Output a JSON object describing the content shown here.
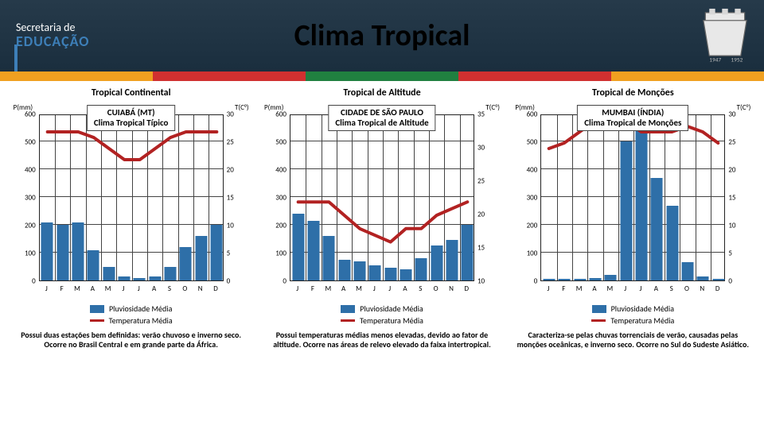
{
  "header": {
    "logo_line1": "Secretaria de",
    "logo_line2": "EDUCAÇÃO",
    "title": "Clima Tropical",
    "stripe_colors": [
      "#f0a020",
      "#d03030",
      "#208040",
      "#d03030",
      "#f0a020"
    ]
  },
  "months": [
    "J",
    "F",
    "M",
    "A",
    "M",
    "J",
    "J",
    "A",
    "S",
    "O",
    "N",
    "D"
  ],
  "p_axis": {
    "label": "P(mm)",
    "ticks": [
      0,
      100,
      200,
      300,
      400,
      500,
      600
    ],
    "max": 600
  },
  "legend": {
    "bar": "Pluviosidade Média",
    "line": "Temperatura Média"
  },
  "bar_color": "#2e6fa8",
  "line_color": "#b22222",
  "charts": [
    {
      "region_title": "Tropical Continental",
      "box_line1": "CUIABÁ (MT)",
      "box_line2": "Clima Tropical Típico",
      "t_axis": {
        "label": "T(C°)",
        "ticks": [
          0,
          5,
          10,
          15,
          20,
          25,
          30
        ],
        "min": 0,
        "max": 30
      },
      "precip": [
        210,
        200,
        210,
        110,
        50,
        15,
        10,
        15,
        50,
        120,
        160,
        200
      ],
      "temp": [
        27,
        27,
        27,
        26,
        24,
        22,
        22,
        24,
        26,
        27,
        27,
        27
      ],
      "desc": "Possui duas estações bem definidas: verão chuvoso e inverno seco. Ocorre no Brasil Central e em grande parte da África."
    },
    {
      "region_title": "Tropical de Altitude",
      "box_line1": "CIDADE DE SÃO PAULO",
      "box_line2": "Clima Tropical de Altitude",
      "t_axis": {
        "label": "T(C°)",
        "ticks": [
          10,
          15,
          20,
          25,
          30,
          35
        ],
        "min": 10,
        "max": 35
      },
      "precip": [
        240,
        215,
        160,
        75,
        70,
        55,
        45,
        40,
        80,
        125,
        145,
        200
      ],
      "temp": [
        22,
        22,
        22,
        20,
        18,
        17,
        16,
        18,
        18,
        20,
        21,
        22
      ],
      "desc": "Possui temperaturas médias menos elevadas, devido ao fator de altitude. Ocorre nas áreas de relevo elevado da faixa intertropical."
    },
    {
      "region_title": "Tropical de Monções",
      "box_line1": "MUMBAI (ÍNDIA)",
      "box_line2": "Clima Tropical de Monções",
      "t_axis": {
        "label": "T(C°)",
        "ticks": [
          0,
          5,
          10,
          15,
          20,
          25,
          30
        ],
        "min": 0,
        "max": 30
      },
      "precip": [
        5,
        5,
        5,
        10,
        20,
        500,
        610,
        370,
        270,
        65,
        15,
        5
      ],
      "temp": [
        24,
        25,
        27,
        29,
        30,
        29,
        27,
        27,
        27,
        28,
        27,
        25
      ],
      "desc": "Caracteriza-se pelas chuvas torrenciais de verão, causadas pelas monções oceânicas, e inverno seco. Ocorre no Sul do Sudeste Asiático."
    }
  ]
}
